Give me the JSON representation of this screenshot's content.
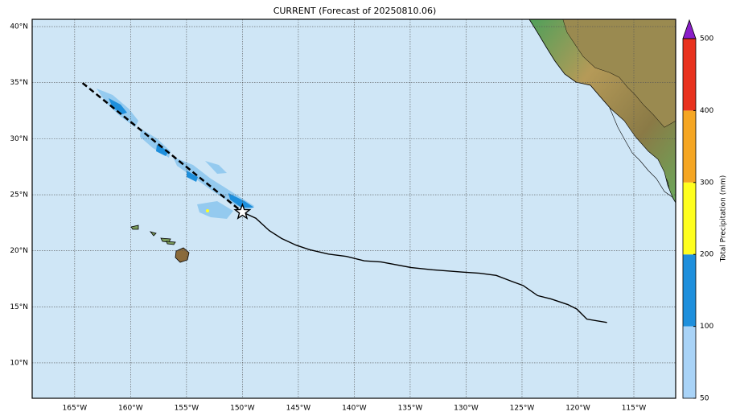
{
  "title": "CURRENT (Forecast of 20250810.06)",
  "map": {
    "lonlim": [
      -168.8,
      -111.26
    ],
    "latlim": [
      6.84,
      40.65
    ],
    "lonticks": [
      {
        "value": -165,
        "label": "165°W"
      },
      {
        "value": -160,
        "label": "160°W"
      },
      {
        "value": -155,
        "label": "155°W"
      },
      {
        "value": -150,
        "label": "150°W"
      },
      {
        "value": -145,
        "label": "145°W"
      },
      {
        "value": -140,
        "label": "140°W"
      },
      {
        "value": -135,
        "label": "135°W"
      },
      {
        "value": -130,
        "label": "130°W"
      },
      {
        "value": -125,
        "label": "125°W"
      },
      {
        "value": -120,
        "label": "120°W"
      },
      {
        "value": -115,
        "label": "115°W"
      }
    ],
    "latticks": [
      {
        "value": 10,
        "label": "10°N"
      },
      {
        "value": 15,
        "label": "15°N"
      },
      {
        "value": 20,
        "label": "20°N"
      },
      {
        "value": 25,
        "label": "25°N"
      },
      {
        "value": 30,
        "label": "30°N"
      },
      {
        "value": 35,
        "label": "35°N"
      },
      {
        "value": 40,
        "label": "40°N"
      }
    ],
    "grid": true
  },
  "track": {
    "past": {
      "lon": [
        -164.3,
        -150.0
      ],
      "lat": [
        34.97,
        23.45
      ]
    },
    "forecast": {
      "lon": [
        -150.0,
        -148.8,
        -147.6,
        -146.5,
        -145.2,
        -144.0,
        -142.3,
        -140.7,
        -139.1,
        -137.6,
        -134.9,
        -133.0,
        -130.3,
        -128.8,
        -127.3,
        -126.0,
        -124.9,
        -123.6,
        -122.4,
        -120.9,
        -120.1,
        -119.2,
        -117.4
      ],
      "lat": [
        23.45,
        22.9,
        21.8,
        21.1,
        20.5,
        20.1,
        19.7,
        19.5,
        19.1,
        19.0,
        18.5,
        18.3,
        18.1,
        18.0,
        17.8,
        17.3,
        16.9,
        16.0,
        15.7,
        15.2,
        14.8,
        13.9,
        13.6
      ]
    }
  },
  "colorbar": {
    "label": "Total Precipitation (mm)",
    "bounds": [
      50,
      100,
      200,
      300,
      400,
      500
    ],
    "colors": [
      "#a9d3f7",
      "#1e8fdc",
      "#ffff1e",
      "#f5a623",
      "#e8321e"
    ],
    "extend_color": "#8a1ec8"
  }
}
